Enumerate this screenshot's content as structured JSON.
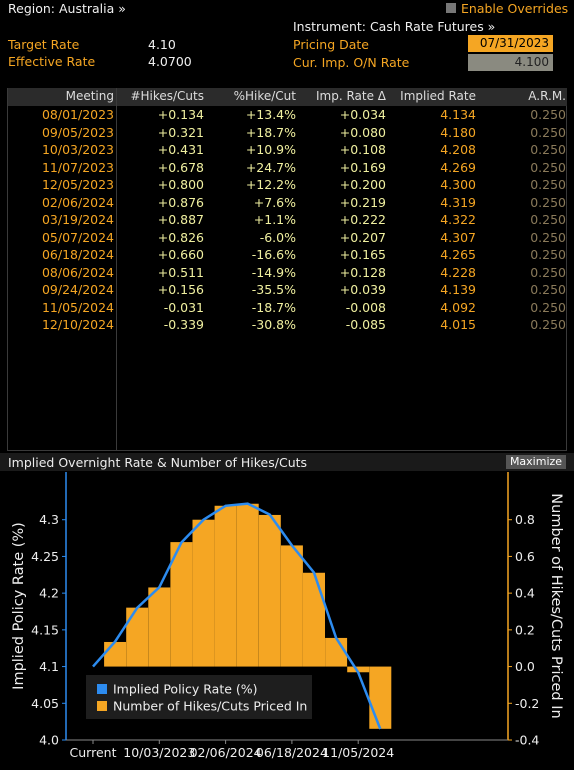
{
  "header": {
    "region_label": "Region: Australia »",
    "target_rate_label": "Target Rate",
    "target_rate_value": "4.10",
    "effective_rate_label": "Effective Rate",
    "effective_rate_value": "4.0700",
    "instrument_label": "Instrument: Cash Rate Futures »",
    "pricing_date_label": "Pricing Date",
    "pricing_date_value": "07/31/2023",
    "cur_imp_label": "Cur. Imp. O/N Rate",
    "cur_imp_value": "4.100",
    "enable_overrides_label": "Enable Overrides"
  },
  "table": {
    "columns": [
      "Meeting",
      "#Hikes/Cuts",
      "%Hike/Cut",
      "Imp. Rate Δ",
      "Implied Rate",
      "A.R.M."
    ],
    "rows": [
      [
        "08/01/2023",
        "+0.134",
        "+13.4%",
        "+0.034",
        "4.134",
        "0.250"
      ],
      [
        "09/05/2023",
        "+0.321",
        "+18.7%",
        "+0.080",
        "4.180",
        "0.250"
      ],
      [
        "10/03/2023",
        "+0.431",
        "+10.9%",
        "+0.108",
        "4.208",
        "0.250"
      ],
      [
        "11/07/2023",
        "+0.678",
        "+24.7%",
        "+0.169",
        "4.269",
        "0.250"
      ],
      [
        "12/05/2023",
        "+0.800",
        "+12.2%",
        "+0.200",
        "4.300",
        "0.250"
      ],
      [
        "02/06/2024",
        "+0.876",
        "+7.6%",
        "+0.219",
        "4.319",
        "0.250"
      ],
      [
        "03/19/2024",
        "+0.887",
        "+1.1%",
        "+0.222",
        "4.322",
        "0.250"
      ],
      [
        "05/07/2024",
        "+0.826",
        "-6.0%",
        "+0.207",
        "4.307",
        "0.250"
      ],
      [
        "06/18/2024",
        "+0.660",
        "-16.6%",
        "+0.165",
        "4.265",
        "0.250"
      ],
      [
        "08/06/2024",
        "+0.511",
        "-14.9%",
        "+0.128",
        "4.228",
        "0.250"
      ],
      [
        "09/24/2024",
        "+0.156",
        "-35.5%",
        "+0.039",
        "4.139",
        "0.250"
      ],
      [
        "11/05/2024",
        "-0.031",
        "-18.7%",
        "-0.008",
        "4.092",
        "0.250"
      ],
      [
        "12/10/2024",
        "-0.339",
        "-30.8%",
        "-0.085",
        "4.015",
        "0.250"
      ]
    ]
  },
  "chart_panel": {
    "title": "Implied Overnight Rate & Number of Hikes/Cuts",
    "maximize_label": "Maximize"
  },
  "chart_data": {
    "type": "bar",
    "categories": [
      "Current",
      "08/01/2023",
      "09/05/2023",
      "10/03/2023",
      "11/07/2023",
      "12/05/2023",
      "02/06/2024",
      "03/19/2024",
      "05/07/2024",
      "06/18/2024",
      "08/06/2024",
      "09/24/2024",
      "11/05/2024",
      "12/10/2024"
    ],
    "x_tick_labels": [
      "Current",
      "10/03/2023",
      "02/06/2024",
      "06/18/2024",
      "11/05/2024"
    ],
    "series": [
      {
        "name": "Implied Policy Rate (%)",
        "type": "line",
        "axis": "left",
        "color": "#2d8cf0",
        "values": [
          4.1,
          4.134,
          4.18,
          4.208,
          4.269,
          4.3,
          4.319,
          4.322,
          4.307,
          4.265,
          4.228,
          4.139,
          4.092,
          4.015
        ]
      },
      {
        "name": "Number of Hikes/Cuts Priced In",
        "type": "bar",
        "axis": "right",
        "color": "#f5a623",
        "values": [
          0,
          0.134,
          0.321,
          0.431,
          0.678,
          0.8,
          0.876,
          0.887,
          0.826,
          0.66,
          0.511,
          0.156,
          -0.031,
          -0.339
        ]
      }
    ],
    "ylabel_left": "Implied Policy Rate (%)",
    "ylabel_right": "Number of Hikes/Cuts Priced In",
    "ylim_left": [
      4.0,
      4.35
    ],
    "ylim_right": [
      -0.4,
      1.0
    ],
    "yticks_left": [
      "4.0",
      "4.05",
      "4.1",
      "4.15",
      "4.2",
      "4.25",
      "4.3"
    ],
    "yticks_right": [
      "-0.4",
      "-0.2",
      "0.0",
      "0.2",
      "0.4",
      "0.6",
      "0.8"
    ],
    "legend_position": "bottom-left",
    "grid": false
  }
}
